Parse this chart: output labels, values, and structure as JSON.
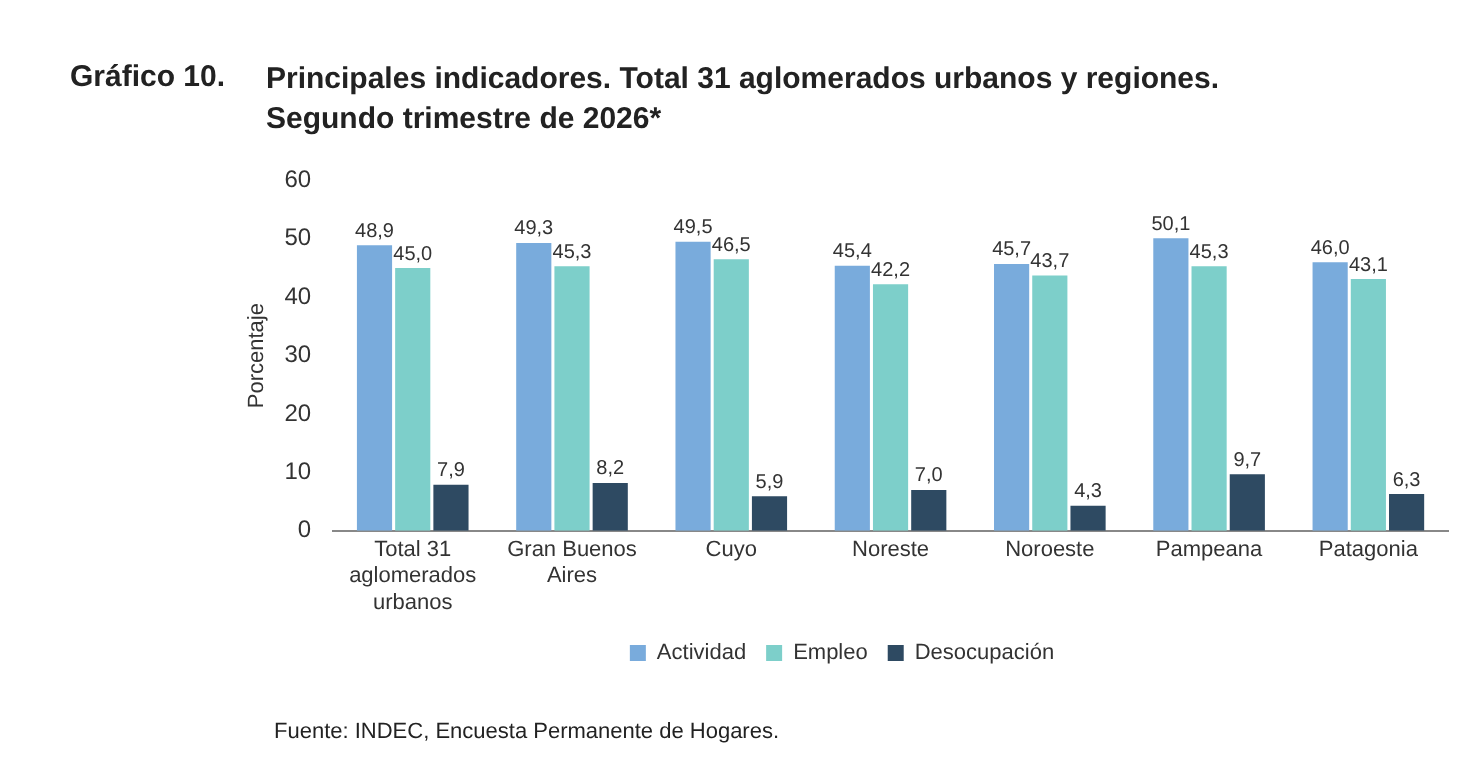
{
  "chart_data": {
    "type": "bar",
    "title": "Principales indicadores. Total 31 aglomerados urbanos y regiones. Segundo trimestre de 2026*",
    "ylabel": "Porcentaje",
    "categories": [
      "Total 31 aglomerados urbanos",
      "Gran Buenos Aires",
      "Cuyo",
      "Noreste",
      "Noroeste",
      "Pampeana",
      "Patagonia"
    ],
    "series": [
      {
        "name": "Actividad",
        "color": "#79abdc",
        "values": [
          48.9,
          49.3,
          49.5,
          45.4,
          45.7,
          50.1,
          46.0
        ],
        "value_labels": [
          "48,9",
          "49,3",
          "49,5",
          "45,4",
          "45,7",
          "50,1",
          "46,0"
        ]
      },
      {
        "name": "Empleo",
        "color": "#7dcfca",
        "values": [
          45.0,
          45.3,
          46.5,
          42.2,
          43.7,
          45.3,
          43.1
        ],
        "value_labels": [
          "45,0",
          "45,3",
          "46,5",
          "42,2",
          "43,7",
          "45,3",
          "43,1"
        ]
      },
      {
        "name": "Desocupación",
        "color": "#2e4a62",
        "values": [
          7.9,
          8.2,
          5.9,
          7.0,
          4.3,
          9.7,
          6.3
        ],
        "value_labels": [
          "7,9",
          "8,2",
          "5,9",
          "7,0",
          "4,3",
          "9,7",
          "6,3"
        ]
      }
    ],
    "ylim": [
      0,
      60
    ],
    "yticks": [
      0,
      10,
      20,
      30,
      40,
      50,
      60
    ],
    "grid": false,
    "legend": "bottom",
    "annotations": [
      "Gráfico 10.",
      "Fuente: INDEC, Encuesta Permanente de Hogares."
    ]
  }
}
